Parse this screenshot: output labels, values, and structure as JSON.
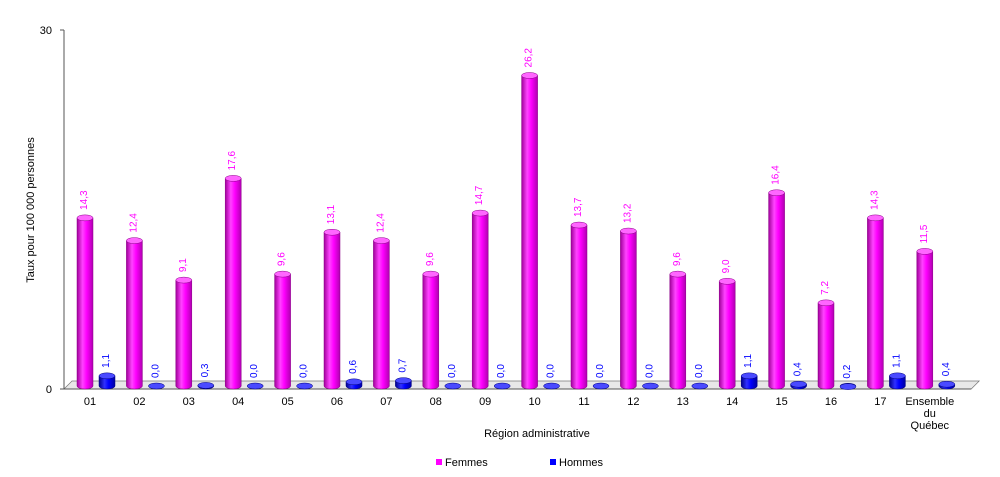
{
  "chart_data": {
    "type": "bar",
    "xlabel": "Région administrative",
    "ylabel": "Taux pour 100 000 personnes",
    "ylim": [
      0,
      30
    ],
    "y_ticks": [
      "0",
      "30"
    ],
    "categories": [
      "01",
      "02",
      "03",
      "04",
      "05",
      "06",
      "07",
      "08",
      "09",
      "10",
      "11",
      "12",
      "13",
      "14",
      "15",
      "16",
      "17",
      [
        "Ensemble",
        "du",
        "Québec"
      ]
    ],
    "series": [
      {
        "name": "Femmes",
        "color": "#ff00ff",
        "values": [
          14.3,
          12.4,
          9.1,
          17.6,
          9.6,
          13.1,
          12.4,
          9.6,
          14.7,
          26.2,
          13.7,
          13.2,
          9.6,
          9.0,
          16.4,
          7.2,
          14.3,
          11.5
        ],
        "labels": [
          "14,3",
          "12,4",
          "9,1",
          "17,6",
          "9,6",
          "13,1",
          "12,4",
          "9,6",
          "14,7",
          "26,2",
          "13,7",
          "13,2",
          "9,6",
          "9,0",
          "16,4",
          "7,2",
          "14,3",
          "11,5"
        ]
      },
      {
        "name": "Hommes",
        "color": "#0000ff",
        "values": [
          1.1,
          0.0,
          0.3,
          0.0,
          0.0,
          0.6,
          0.7,
          0.0,
          0.0,
          0.0,
          0.0,
          0.0,
          0.0,
          1.1,
          0.4,
          0.2,
          1.1,
          0.4
        ],
        "labels": [
          "1,1",
          "0,0",
          "0,3",
          "0,0",
          "0,0",
          "0,6",
          "0,7",
          "0,0",
          "0,0",
          "0,0",
          "0,0",
          "0,0",
          "0,0",
          "1,1",
          "0,4",
          "0,2",
          "1,1",
          "0,4"
        ]
      }
    ],
    "legend": "bottom-center",
    "grid": false
  }
}
